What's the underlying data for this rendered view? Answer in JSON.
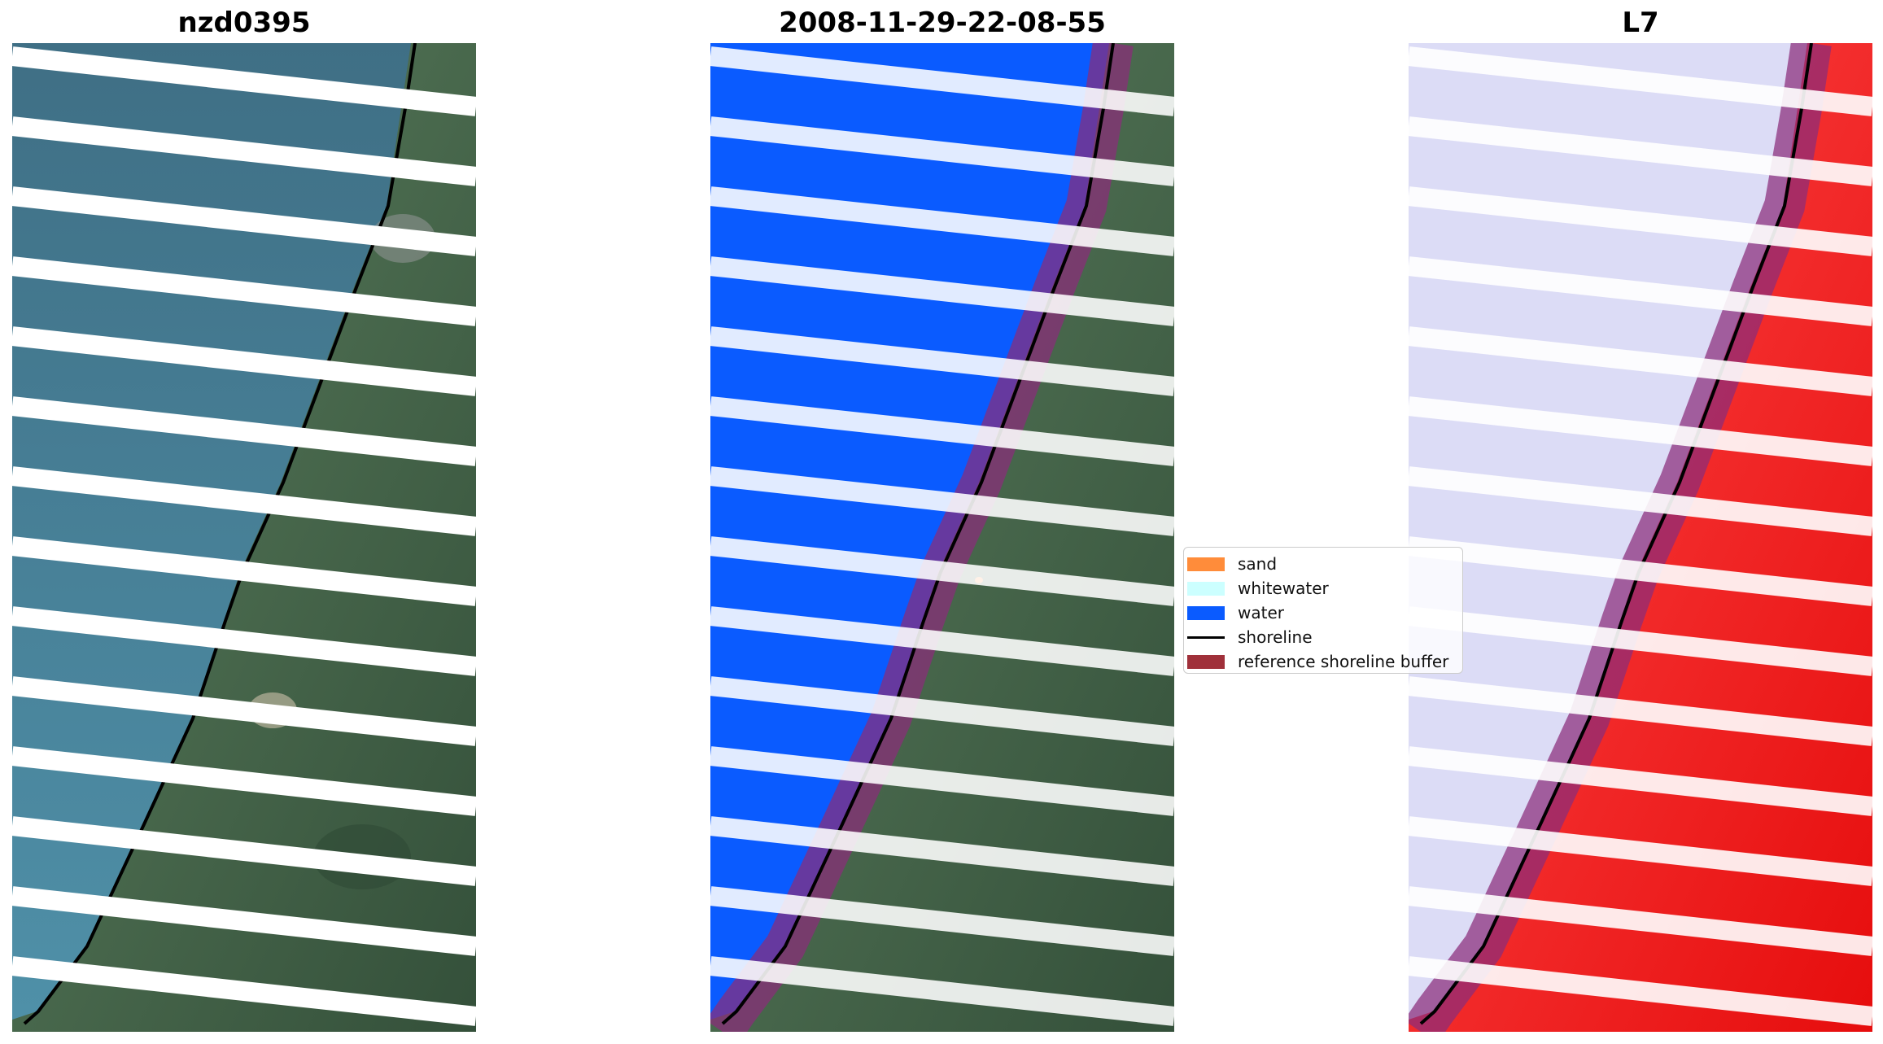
{
  "panels": [
    {
      "title": "nzd0395",
      "mode": "rgb"
    },
    {
      "title": "2008-11-29-22-08-55",
      "mode": "classified"
    },
    {
      "title": "L7",
      "mode": "index"
    }
  ],
  "legend": {
    "items": [
      {
        "label": "sand",
        "color": "#ff8c3a",
        "kind": "patch"
      },
      {
        "label": "whitewater",
        "color": "#ccffff",
        "kind": "patch"
      },
      {
        "label": "water",
        "color": "#0a5bff",
        "kind": "patch"
      },
      {
        "label": "shoreline",
        "color": "#000000",
        "kind": "line"
      },
      {
        "label": "reference shoreline buffer",
        "color": "#a0303a",
        "kind": "patch"
      }
    ]
  },
  "colors": {
    "sea": "#4a7d95",
    "land_dark": "#3e5a44",
    "land_light": "#6b7f62",
    "water_class": "#0a5bff",
    "index_low": "#dcdcf6",
    "index_high": "#f21818",
    "buffer": "#8b2d7a",
    "shoreline": "#000000"
  }
}
